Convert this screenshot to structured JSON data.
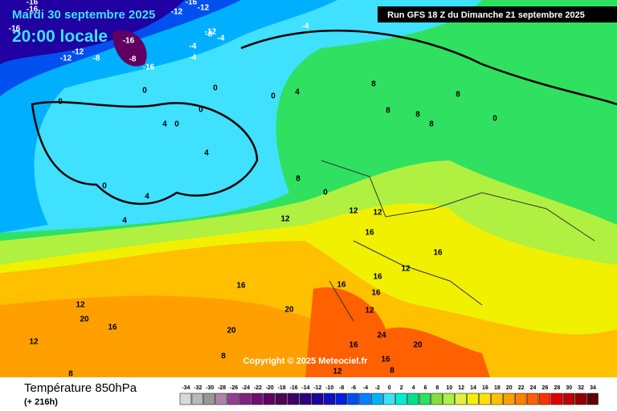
{
  "header": {
    "date": "Mardi 30 septembre 2025",
    "time": "20:00 locale",
    "run": "Run GFS 18 Z du Dimanche 21 septembre 2025"
  },
  "copyright": "Copyright © 2025 Meteociel.fr",
  "footer": {
    "title": "Température 850hPa",
    "lead": "(+ 216h)"
  },
  "scale": {
    "values": [
      -34,
      -32,
      -30,
      -28,
      -26,
      -24,
      -22,
      -20,
      -18,
      -16,
      -14,
      -12,
      -10,
      -8,
      -6,
      -4,
      -2,
      0,
      2,
      4,
      6,
      8,
      10,
      12,
      14,
      16,
      18,
      20,
      22,
      24,
      26,
      28,
      30,
      32,
      34
    ],
    "colors": [
      "#d8d8d8",
      "#b8b8b8",
      "#989898",
      "#b080b0",
      "#904090",
      "#802080",
      "#701070",
      "#600060",
      "#500058",
      "#400068",
      "#300080",
      "#2000a0",
      "#1010c0",
      "#0020e0",
      "#0050f0",
      "#0080ff",
      "#00b0ff",
      "#40e0ff",
      "#00f0d0",
      "#00e090",
      "#30e060",
      "#80e040",
      "#b0f040",
      "#e0f040",
      "#f0f000",
      "#ffe000",
      "#ffc000",
      "#ffa000",
      "#ff8000",
      "#ff6000",
      "#ff3000",
      "#e00000",
      "#c00000",
      "#900000",
      "#600000"
    ]
  },
  "map_labels": [
    -16,
    -16,
    -12,
    -16,
    -12,
    -16,
    -12,
    -12,
    -12,
    -16,
    -8,
    -16,
    -4,
    -4,
    -8,
    -8,
    -4,
    -4,
    0,
    0,
    0,
    0,
    0,
    4,
    0,
    4,
    4,
    0,
    4,
    4,
    8,
    8,
    8,
    8,
    8,
    8,
    0,
    0,
    12,
    12,
    12,
    16,
    16,
    12,
    16,
    16,
    16,
    16,
    12,
    12,
    20,
    20,
    20,
    24,
    20,
    16,
    16,
    8,
    12,
    16,
    12,
    8,
    8
  ]
}
